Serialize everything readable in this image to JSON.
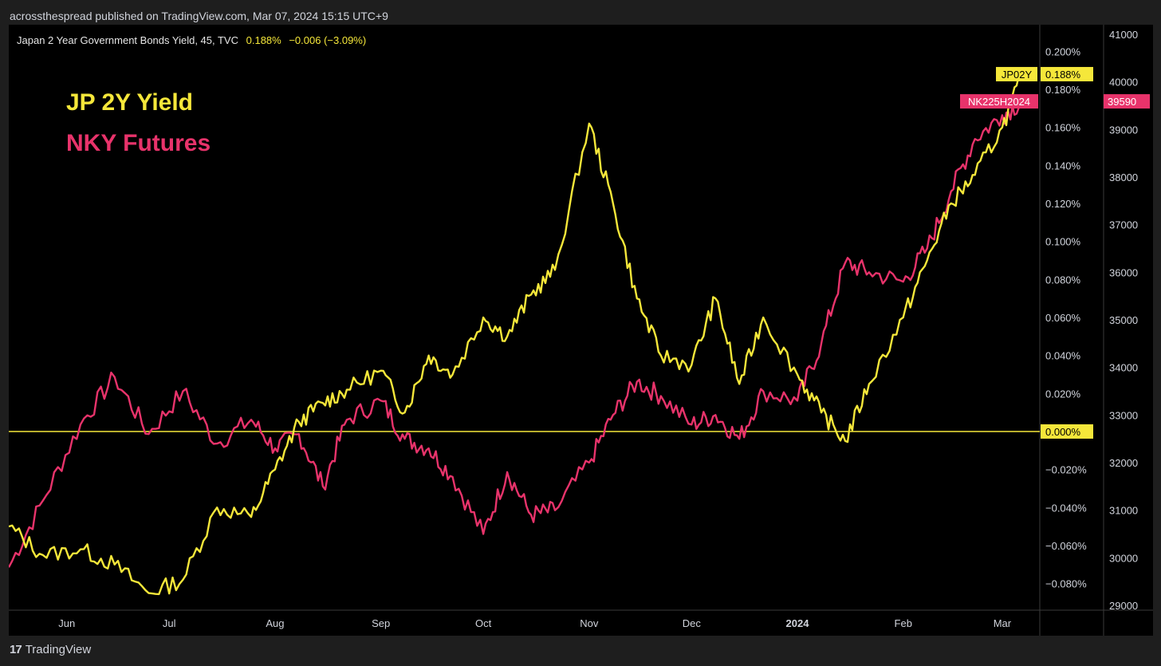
{
  "header": {
    "published_line": "acrossthespread published on TradingView.com, Mar 07, 2024 15:15 UTC+9"
  },
  "legend": {
    "symbol": "Japan 2 Year Government Bonds Yield, 45, TVC",
    "last": "0.188%",
    "change": "−0.006 (−3.09%)"
  },
  "annotations": {
    "yield_label": "JP 2Y Yield",
    "nky_label": "NKY Futures"
  },
  "footer": {
    "brand": "TradingView",
    "logo_mark": "17"
  },
  "colors": {
    "yield": "#f5e73a",
    "nky": "#e8336b",
    "background": "#000000"
  },
  "chart_data": {
    "type": "line",
    "x_labels": [
      "Jun",
      "Jul",
      "Aug",
      "Sep",
      "Oct",
      "Nov",
      "Dec",
      "2024",
      "Feb",
      "Mar"
    ],
    "y_left_ticks": [
      "0.200%",
      "0.180%",
      "0.160%",
      "0.140%",
      "0.120%",
      "0.100%",
      "0.080%",
      "0.060%",
      "0.040%",
      "0.020%",
      "0.000%",
      "−0.020%",
      "−0.040%",
      "−0.060%",
      "−0.080%"
    ],
    "y_right_ticks": [
      "41000",
      "40000",
      "39000",
      "38000",
      "37000",
      "36000",
      "35000",
      "34000",
      "33000",
      "32000",
      "31000",
      "30000",
      "29000"
    ],
    "ylim_yield": [
      -0.094,
      0.214
    ],
    "ylim_nky": [
      28900,
      41200
    ],
    "zero_line": 0.0,
    "badges": [
      {
        "label": "JP02Y",
        "value": "0.188%"
      },
      {
        "label": "NK225H2024",
        "value": "39590"
      }
    ],
    "zero_badge": "0.000%",
    "series": [
      {
        "name": "JP02Y",
        "axis": "left",
        "x": [
          "2023-05-15",
          "2023-05-25",
          "2023-06-05",
          "2023-06-15",
          "2023-06-25",
          "2023-07-05",
          "2023-07-15",
          "2023-07-25",
          "2023-08-01",
          "2023-08-08",
          "2023-08-15",
          "2023-08-22",
          "2023-09-01",
          "2023-09-08",
          "2023-09-15",
          "2023-09-22",
          "2023-10-01",
          "2023-10-08",
          "2023-10-15",
          "2023-10-22",
          "2023-11-01",
          "2023-11-08",
          "2023-11-15",
          "2023-11-22",
          "2023-12-01",
          "2023-12-08",
          "2023-12-15",
          "2023-12-22",
          "2024-01-01",
          "2024-01-08",
          "2024-01-15",
          "2024-01-22",
          "2024-02-01",
          "2024-02-08",
          "2024-02-15",
          "2024-02-22",
          "2024-03-01",
          "2024-03-07"
        ],
        "y": [
          -0.05,
          -0.065,
          -0.062,
          -0.07,
          -0.085,
          -0.078,
          -0.04,
          -0.045,
          -0.02,
          0.005,
          0.015,
          0.022,
          0.032,
          0.01,
          0.04,
          0.03,
          0.06,
          0.05,
          0.072,
          0.085,
          0.162,
          0.12,
          0.07,
          0.04,
          0.035,
          0.07,
          0.025,
          0.06,
          0.03,
          0.01,
          -0.005,
          0.025,
          0.06,
          0.09,
          0.12,
          0.135,
          0.16,
          0.188
        ]
      },
      {
        "name": "NK225H2024",
        "axis": "right",
        "x": [
          "2023-05-15",
          "2023-05-25",
          "2023-06-05",
          "2023-06-15",
          "2023-06-25",
          "2023-07-05",
          "2023-07-15",
          "2023-07-25",
          "2023-08-01",
          "2023-08-08",
          "2023-08-15",
          "2023-08-22",
          "2023-09-01",
          "2023-09-08",
          "2023-09-15",
          "2023-09-22",
          "2023-10-01",
          "2023-10-08",
          "2023-10-15",
          "2023-10-22",
          "2023-11-01",
          "2023-11-08",
          "2023-11-15",
          "2023-11-22",
          "2023-12-01",
          "2023-12-08",
          "2023-12-15",
          "2023-12-22",
          "2024-01-01",
          "2024-01-08",
          "2024-01-15",
          "2024-01-22",
          "2024-02-01",
          "2024-02-08",
          "2024-02-15",
          "2024-02-22",
          "2024-03-01",
          "2024-03-07"
        ],
        "y": [
          29800,
          31200,
          32800,
          33800,
          32600,
          33500,
          32400,
          32900,
          32300,
          32600,
          31500,
          32900,
          33300,
          32500,
          32300,
          31700,
          30500,
          31800,
          30900,
          31000,
          32000,
          33000,
          33700,
          33400,
          32800,
          33000,
          32500,
          33500,
          33300,
          34500,
          36200,
          36000,
          35800,
          36500,
          37700,
          38800,
          39300,
          39590
        ]
      }
    ]
  }
}
